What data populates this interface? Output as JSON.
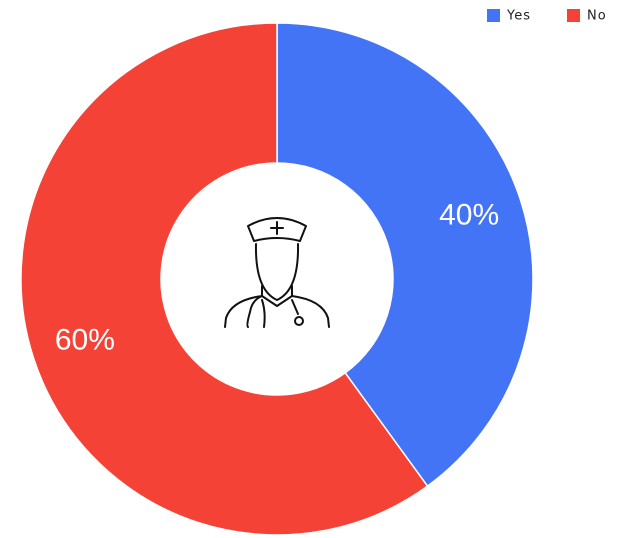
{
  "chart_data": {
    "type": "pie",
    "donut": true,
    "categories": [
      "Yes",
      "No"
    ],
    "values": [
      40,
      60
    ],
    "value_labels": [
      "40%",
      "60%"
    ],
    "colors": [
      "#4274f5",
      "#f44336"
    ],
    "legend": "top-right"
  }
}
